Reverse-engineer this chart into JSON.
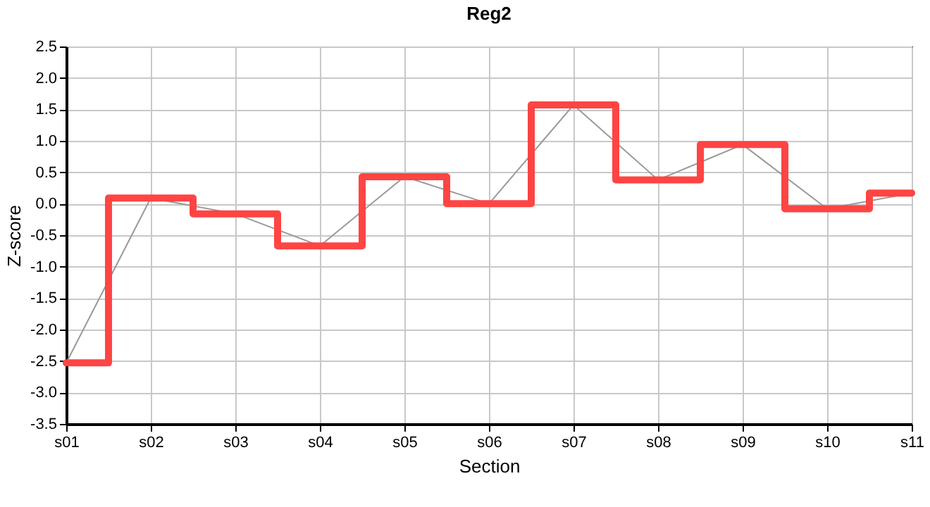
{
  "chart_data": {
    "type": "line",
    "title": "Reg2",
    "xlabel": "Section",
    "ylabel": "Z-score",
    "categories": [
      "s01",
      "s02",
      "s03",
      "s04",
      "s05",
      "s06",
      "s07",
      "s08",
      "s09",
      "s10",
      "s11"
    ],
    "series": [
      {
        "color": "#999999",
        "values": [
          -2.53,
          0.09,
          -0.16,
          -0.67,
          0.43,
          0.0,
          1.57,
          0.38,
          0.94,
          -0.08,
          0.17
        ]
      },
      {
        "type": "step",
        "color": "#ff4444",
        "values": [
          -2.53,
          0.09,
          -0.16,
          -0.67,
          0.43,
          0.0,
          1.57,
          0.38,
          0.94,
          -0.08,
          0.17
        ]
      }
    ],
    "ylim": [
      -3.5,
      2.5
    ],
    "yticks": [
      {
        "value": -3.5,
        "label": "-3.5"
      },
      {
        "value": -3,
        "label": "-3.0"
      },
      {
        "value": -2.5,
        "label": "-2.5"
      },
      {
        "value": -2,
        "label": "-2.0"
      },
      {
        "value": -1.5,
        "label": "-1.5"
      },
      {
        "value": -1,
        "label": "-1.0"
      },
      {
        "value": -0.5,
        "label": "-0.5"
      },
      {
        "value": 0,
        "label": "0.0"
      },
      {
        "value": 0.5,
        "label": "0.5"
      },
      {
        "value": 1,
        "label": "1.0"
      },
      {
        "value": 1.5,
        "label": "1.5"
      },
      {
        "value": 2,
        "label": "2.0"
      },
      {
        "value": 2.5,
        "label": "2.5"
      }
    ],
    "grid": true,
    "marker": "none"
  }
}
